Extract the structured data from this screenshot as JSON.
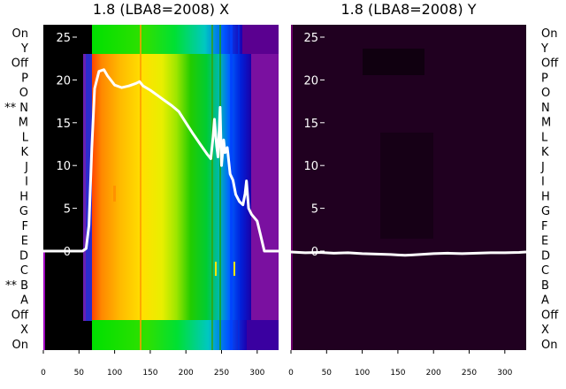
{
  "chart_data": [
    {
      "type": "line",
      "title": "1.8 (LBA8=2008) X",
      "xlim": [
        0,
        330
      ],
      "ylim": [
        -12,
        27
      ],
      "x_ticks": [
        "0",
        "50",
        "100",
        "150",
        "200",
        "250",
        "300"
      ],
      "y_ticks": [
        "0",
        "5",
        "10",
        "15",
        "20",
        "25"
      ],
      "background": "waterfall-spectrum",
      "line_color": "#ffffff",
      "series": [
        {
          "x": [
            0,
            55,
            60,
            64,
            68,
            72,
            78,
            85,
            90,
            100,
            110,
            120,
            130,
            135,
            140,
            150,
            160,
            170,
            180,
            190,
            200,
            210,
            220,
            230,
            235,
            238,
            240,
            243,
            245,
            248,
            250,
            253,
            255,
            258,
            262,
            266,
            270,
            275,
            280,
            283,
            285,
            288,
            292,
            300,
            305,
            310,
            320,
            330
          ],
          "y": [
            0,
            0,
            0.3,
            3,
            12,
            19,
            21,
            21.2,
            20.5,
            19.4,
            19.1,
            19.3,
            19.6,
            19.8,
            19.3,
            18.8,
            18.2,
            17.6,
            17,
            16.3,
            15,
            13.7,
            12.5,
            11.3,
            10.8,
            13.2,
            15.4,
            12.3,
            11,
            16.8,
            10,
            13,
            11.5,
            12.1,
            9,
            8.3,
            6.6,
            5.8,
            5.4,
            6.7,
            8.2,
            5,
            4.3,
            3.5,
            1.8,
            0,
            0,
            0
          ]
        }
      ]
    },
    {
      "type": "line",
      "title": "1.8 (LBA8=2008) Y",
      "xlim": [
        0,
        330
      ],
      "ylim": [
        -12,
        27
      ],
      "x_ticks": [
        "0",
        "50",
        "100",
        "150",
        "200",
        "250",
        "300"
      ],
      "y_ticks": [
        "0",
        "5",
        "10",
        "15",
        "20",
        "25"
      ],
      "background": "dark-purple",
      "line_color": "#ffffff",
      "series": [
        {
          "x": [
            0,
            20,
            40,
            60,
            80,
            100,
            120,
            140,
            150,
            160,
            170,
            180,
            190,
            200,
            220,
            240,
            260,
            280,
            300,
            320,
            330
          ],
          "y": [
            -0.1,
            -0.2,
            -0.15,
            -0.25,
            -0.2,
            -0.3,
            -0.35,
            -0.4,
            -0.45,
            -0.5,
            -0.45,
            -0.4,
            -0.35,
            -0.3,
            -0.25,
            -0.3,
            -0.25,
            -0.2,
            -0.2,
            -0.15,
            -0.1
          ]
        }
      ]
    }
  ],
  "row_labels_left": [
    "On",
    "Y",
    "Off",
    "P",
    "O",
    "** N",
    "M",
    "L",
    "K",
    "J",
    "I",
    "H",
    "G",
    "F",
    "E",
    "D",
    "C",
    "** B",
    "A",
    "Off",
    "X",
    "On"
  ],
  "row_labels_right": [
    "On",
    "Y",
    "Off",
    "P",
    "O",
    "N",
    "M",
    "L",
    "K",
    "J",
    "I",
    "H",
    "G",
    "F",
    "E",
    "D",
    "C",
    "B",
    "A",
    "Off",
    "X",
    "On"
  ]
}
